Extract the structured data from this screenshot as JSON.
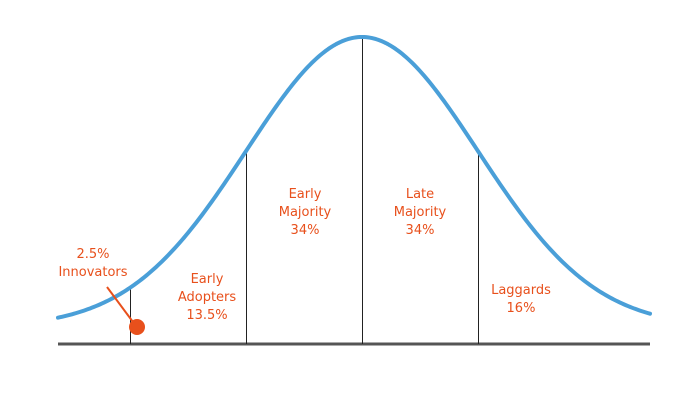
{
  "chart_data": {
    "type": "area",
    "title": "",
    "xlabel": "",
    "ylabel": "",
    "curve": "normal-distribution",
    "colors": {
      "curve": "#4a9fd8",
      "labels": "#e8501c",
      "dividers": "#222222",
      "baseline": "#555555",
      "marker": "#e8501c"
    },
    "segments": [
      {
        "name": "Innovators",
        "line1": "2.5%",
        "line2": "Innovators",
        "line3": "",
        "value": 2.5
      },
      {
        "name": "Early Adopters",
        "line1": "Early",
        "line2": "Adopters",
        "line3": "13.5%",
        "value": 13.5
      },
      {
        "name": "Early Majority",
        "line1": "Early",
        "line2": "Majority",
        "line3": "34%",
        "value": 34
      },
      {
        "name": "Late Majority",
        "line1": "Late",
        "line2": "Majority",
        "line3": "34%",
        "value": 34
      },
      {
        "name": "Laggards",
        "line1": "Laggards",
        "line2": "16%",
        "line3": "",
        "value": 16
      }
    ]
  }
}
